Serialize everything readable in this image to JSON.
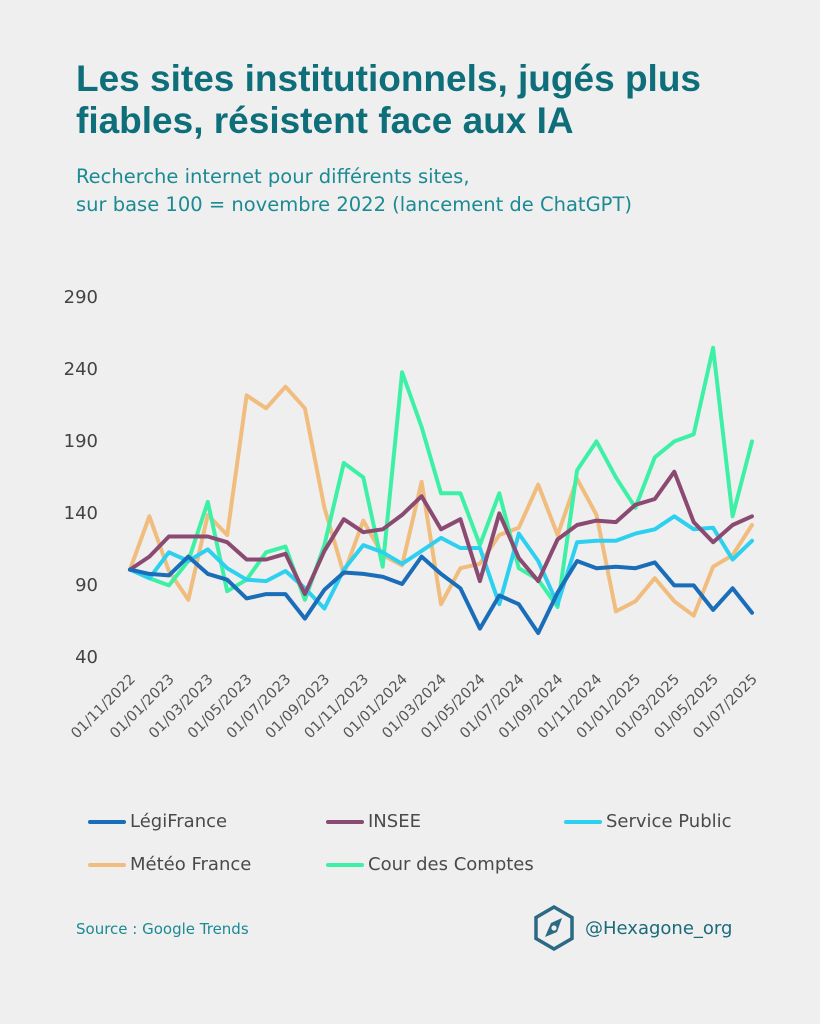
{
  "title": "Les sites institutionnels, jugés plus fiables, résistent face aux IA",
  "subtitle_line1": "Recherche internet pour différents sites,",
  "subtitle_line2": "sur base 100 = novembre 2022 (lancement de ChatGPT)",
  "source": "Source : Google Trends",
  "brand": {
    "handle": "@Hexagone_org",
    "logo_icon": "hexagon-compass-icon",
    "logo_color": "#2a6a84"
  },
  "legend_labels": [
    "LégiFrance",
    "INSEE",
    "Service Public",
    "Météo France",
    "Cour des Comptes"
  ],
  "chart_data": {
    "type": "line",
    "title": "",
    "xlabel": "",
    "ylabel": "",
    "ylim": [
      40,
      290
    ],
    "yticks": [
      40,
      90,
      140,
      190,
      240,
      290
    ],
    "x": [
      "2022-11",
      "2022-12",
      "2023-01",
      "2023-02",
      "2023-03",
      "2023-04",
      "2023-05",
      "2023-06",
      "2023-07",
      "2023-08",
      "2023-09",
      "2023-10",
      "2023-11",
      "2023-12",
      "2024-01",
      "2024-02",
      "2024-03",
      "2024-04",
      "2024-05",
      "2024-06",
      "2024-07",
      "2024-08",
      "2024-09",
      "2024-10",
      "2024-11",
      "2024-12",
      "2025-01",
      "2025-02",
      "2025-03",
      "2025-04",
      "2025-05",
      "2025-06",
      "2025-07"
    ],
    "xtick_labels": [
      "01/11/2022",
      "01/01/2023",
      "01/03/2023",
      "01/05/2023",
      "01/07/2023",
      "01/09/2023",
      "01/11/2023",
      "01/01/2024",
      "01/03/2024",
      "01/05/2024",
      "01/07/2024",
      "01/09/2024",
      "01/11/2024",
      "01/01/2025",
      "01/03/2025",
      "01/05/2025",
      "01/07/2025"
    ],
    "grid": false,
    "legend_position": "bottom",
    "series": [
      {
        "name": "LégiFrance",
        "color": "#1a6db8",
        "values": [
          100,
          97,
          96,
          109,
          97,
          93,
          80,
          83,
          83,
          66,
          86,
          98,
          97,
          95,
          90,
          109,
          97,
          87,
          59,
          82,
          76,
          56,
          84,
          106,
          101,
          102,
          101,
          105,
          89,
          89,
          72,
          87,
          70
        ]
      },
      {
        "name": "INSEE",
        "color": "#8a4a72",
        "values": [
          100,
          109,
          123,
          123,
          123,
          119,
          107,
          107,
          111,
          83,
          113,
          135,
          126,
          128,
          138,
          151,
          128,
          135,
          92,
          139,
          108,
          92,
          121,
          131,
          134,
          133,
          145,
          149,
          168,
          133,
          119,
          131,
          137
        ]
      },
      {
        "name": "Service Public",
        "color": "#2dd0ee",
        "values": [
          100,
          94,
          112,
          106,
          114,
          101,
          93,
          92,
          99,
          87,
          73,
          100,
          117,
          112,
          104,
          113,
          122,
          115,
          115,
          76,
          125,
          106,
          76,
          119,
          120,
          120,
          125,
          128,
          137,
          128,
          129,
          107,
          120
        ]
      },
      {
        "name": "Météo France",
        "color": "#f0bd7e",
        "values": [
          100,
          137,
          99,
          79,
          138,
          124,
          221,
          212,
          227,
          212,
          143,
          97,
          134,
          110,
          103,
          161,
          76,
          101,
          104,
          124,
          129,
          159,
          124,
          163,
          138,
          71,
          78,
          94,
          78,
          68,
          102,
          110,
          131
        ]
      },
      {
        "name": "Cour des Comptes",
        "color": "#3ef0a6",
        "values": [
          100,
          94,
          89,
          106,
          147,
          85,
          93,
          112,
          116,
          79,
          117,
          174,
          164,
          102,
          237,
          199,
          153,
          153,
          117,
          153,
          101,
          93,
          74,
          169,
          189,
          164,
          143,
          178,
          189,
          194,
          254,
          137,
          189
        ]
      }
    ]
  }
}
